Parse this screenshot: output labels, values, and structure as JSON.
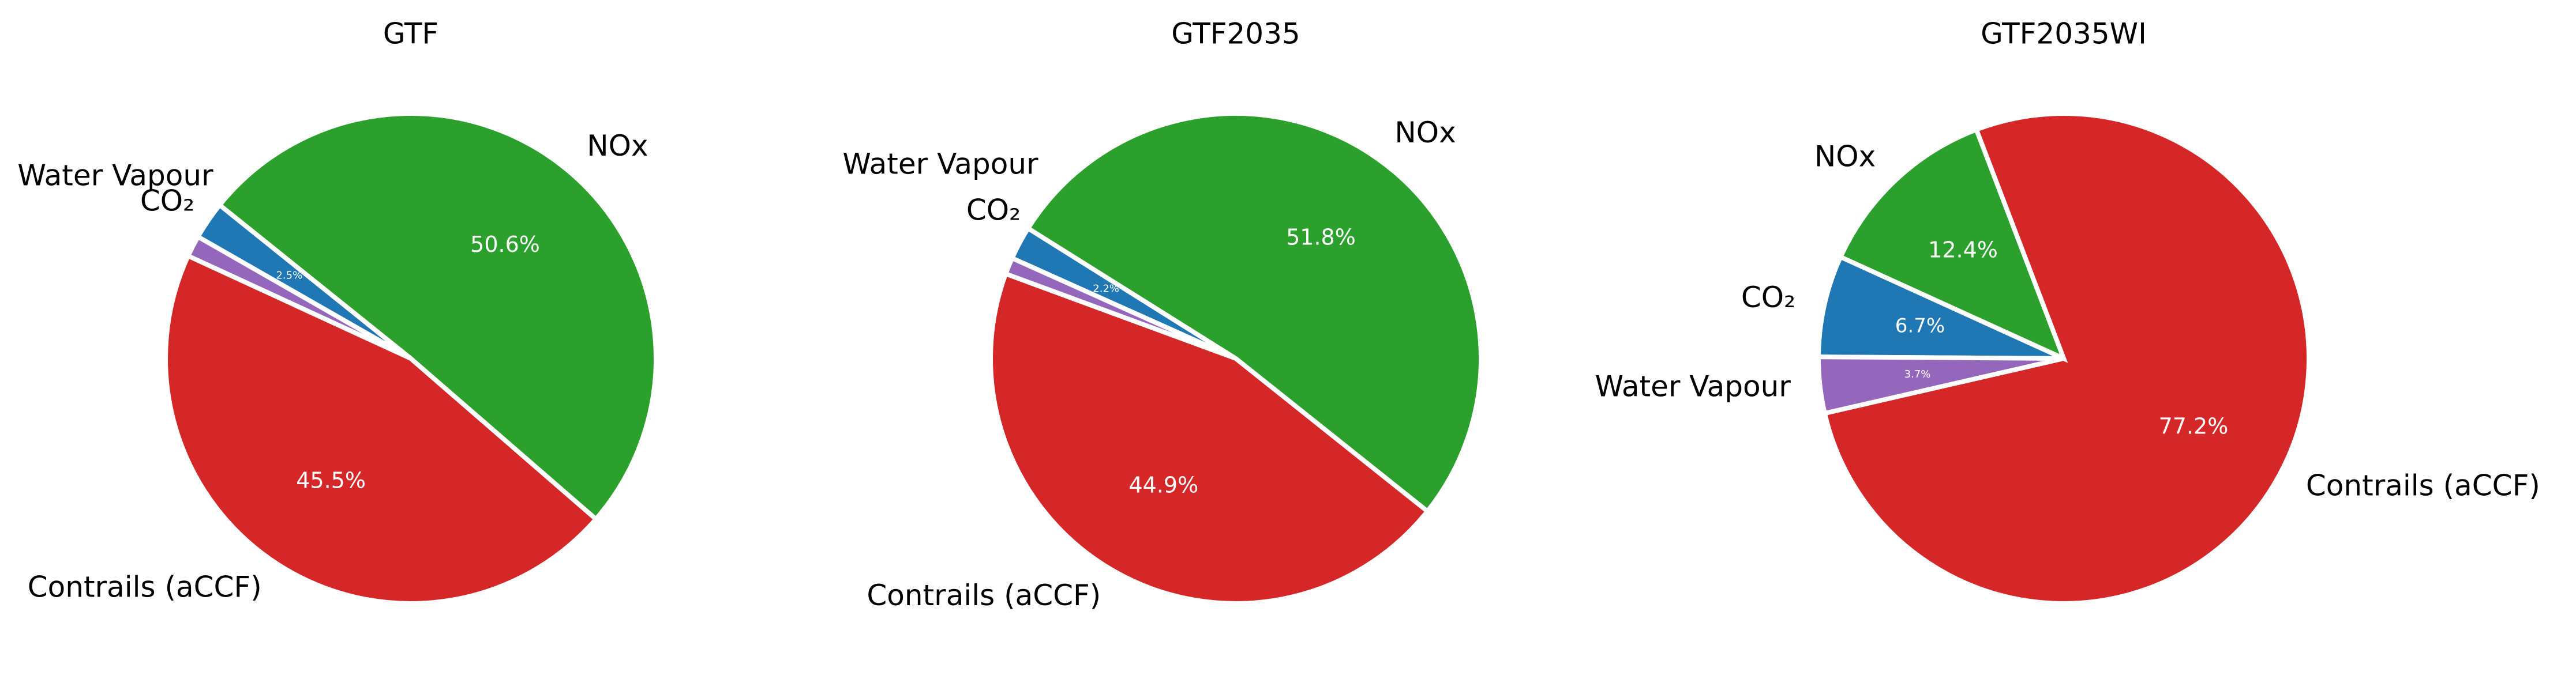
{
  "chart_data": [
    {
      "type": "pie",
      "title": "GTF",
      "slices": [
        {
          "label": "CO₂",
          "value": 2.5,
          "pct_label": "2.5%",
          "color": "#1f77b4"
        },
        {
          "label": "Water Vapour",
          "value": 1.4,
          "pct_label": "",
          "color": "#9467bd"
        },
        {
          "label": "Contrails (aCCF)",
          "value": 45.5,
          "pct_label": "45.5%",
          "color": "#d62728"
        },
        {
          "label": "NOx",
          "value": 50.6,
          "pct_label": "50.6%",
          "color": "#2ca02c"
        }
      ]
    },
    {
      "type": "pie",
      "title": "GTF2035",
      "slices": [
        {
          "label": "CO₂",
          "value": 2.2,
          "pct_label": "2.2%",
          "color": "#1f77b4"
        },
        {
          "label": "Water Vapour",
          "value": 1.1,
          "pct_label": "",
          "color": "#9467bd"
        },
        {
          "label": "Contrails (aCCF)",
          "value": 44.9,
          "pct_label": "44.9%",
          "color": "#d62728"
        },
        {
          "label": "NOx",
          "value": 51.8,
          "pct_label": "51.8%",
          "color": "#2ca02c"
        }
      ]
    },
    {
      "type": "pie",
      "title": "GTF2035WI",
      "slices": [
        {
          "label": "CO₂",
          "value": 6.7,
          "pct_label": "6.7%",
          "color": "#1f77b4"
        },
        {
          "label": "Water Vapour",
          "value": 3.7,
          "pct_label": "3.7%",
          "color": "#9467bd"
        },
        {
          "label": "Contrails (aCCF)",
          "value": 77.2,
          "pct_label": "77.2%",
          "color": "#d62728"
        },
        {
          "label": "NOx",
          "value": 12.4,
          "pct_label": "12.4%",
          "color": "#2ca02c"
        }
      ]
    }
  ]
}
